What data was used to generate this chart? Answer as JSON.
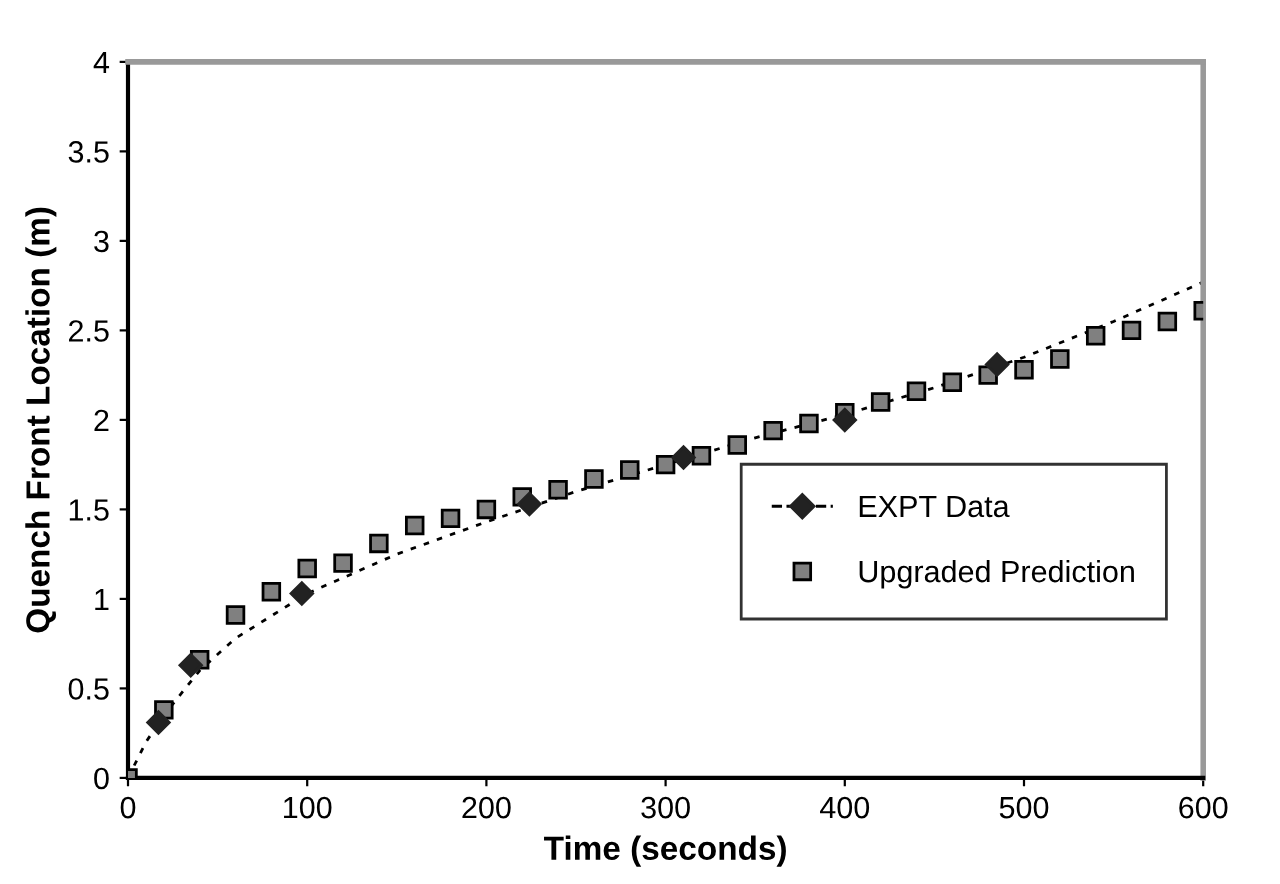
{
  "chart_data": {
    "type": "scatter",
    "xlabel": "Time (seconds)",
    "ylabel": "Quench Front Location (m)",
    "xlim": [
      0,
      600
    ],
    "xticks": [
      0,
      100,
      200,
      300,
      400,
      500,
      600
    ],
    "ylim": [
      0,
      4
    ],
    "yticks": [
      0,
      0.5,
      1,
      1.5,
      2,
      2.5,
      3,
      3.5,
      4
    ],
    "grid": false,
    "legend": "right",
    "series": [
      {
        "type": "line",
        "line_style": "dotted",
        "marker": "none",
        "color": "#000000",
        "x": [
          0,
          10,
          20,
          40,
          60,
          100,
          150,
          200,
          250,
          300,
          350,
          400,
          450,
          500,
          550,
          600
        ],
        "values": [
          0,
          0.2,
          0.35,
          0.6,
          0.78,
          1.03,
          1.25,
          1.43,
          1.6,
          1.75,
          1.9,
          2.03,
          2.18,
          2.35,
          2.55,
          2.77
        ]
      },
      {
        "name": "EXPT Data",
        "marker": "diamond",
        "color": "#222222",
        "x": [
          17,
          35,
          97,
          224,
          310,
          400,
          485
        ],
        "values": [
          0.31,
          0.63,
          1.03,
          1.53,
          1.79,
          2.0,
          2.31
        ]
      },
      {
        "name": "Upgraded Prediction",
        "marker": "square",
        "color": "#808080",
        "x": [
          0,
          20,
          40,
          60,
          80,
          100,
          120,
          140,
          160,
          180,
          200,
          220,
          240,
          260,
          280,
          300,
          320,
          340,
          360,
          380,
          400,
          420,
          440,
          460,
          480,
          500,
          520,
          540,
          560,
          580,
          600
        ],
        "values": [
          0,
          0.38,
          0.66,
          0.91,
          1.04,
          1.17,
          1.2,
          1.31,
          1.41,
          1.45,
          1.5,
          1.57,
          1.61,
          1.67,
          1.72,
          1.75,
          1.8,
          1.86,
          1.94,
          1.98,
          2.04,
          2.1,
          2.16,
          2.21,
          2.25,
          2.28,
          2.34,
          2.47,
          2.5,
          2.55,
          2.61
        ]
      }
    ]
  }
}
